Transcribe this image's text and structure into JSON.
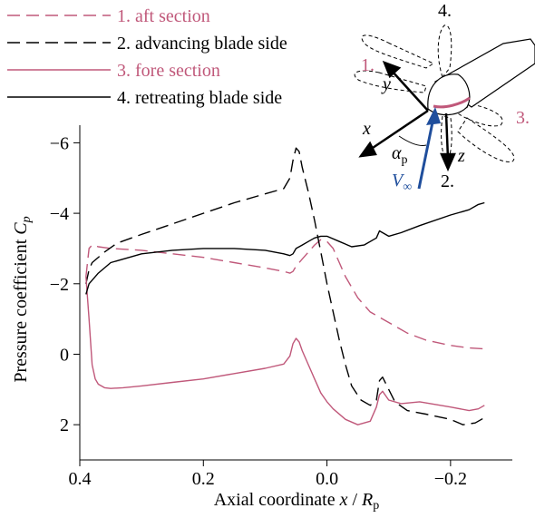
{
  "chart_data": {
    "type": "line",
    "xlabel": "Axial coordinate x / R_p",
    "ylabel": "Pressure coefficient C_p",
    "xlim": [
      0.4,
      -0.3
    ],
    "ylim": [
      3,
      -6.5
    ],
    "x_axis_reversed": true,
    "y_axis_reversed": true,
    "xticks": [
      "0.4",
      "0.2",
      "0.0",
      "−0.2"
    ],
    "xtick_values": [
      0.4,
      0.2,
      0.0,
      -0.2
    ],
    "yticks": [
      "−6",
      "−4",
      "−2",
      "0",
      "2"
    ],
    "ytick_values": [
      -6,
      -4,
      -2,
      0,
      2
    ],
    "grid": false,
    "legend_position": "top-left",
    "series": [
      {
        "name": "1. aft section",
        "color": "#c0587a",
        "dash": "dashed",
        "points": [
          [
            0.39,
            -2.2
          ],
          [
            0.385,
            -3.0
          ],
          [
            0.38,
            -3.1
          ],
          [
            0.37,
            -3.05
          ],
          [
            0.35,
            -3.0
          ],
          [
            0.3,
            -2.95
          ],
          [
            0.25,
            -2.85
          ],
          [
            0.2,
            -2.75
          ],
          [
            0.15,
            -2.6
          ],
          [
            0.1,
            -2.45
          ],
          [
            0.07,
            -2.35
          ],
          [
            0.06,
            -2.3
          ],
          [
            0.055,
            -2.35
          ],
          [
            0.05,
            -2.5
          ],
          [
            0.04,
            -2.7
          ],
          [
            0.03,
            -2.9
          ],
          [
            0.02,
            -3.1
          ],
          [
            0.01,
            -3.25
          ],
          [
            0.0,
            -3.2
          ],
          [
            -0.01,
            -3.0
          ],
          [
            -0.02,
            -2.6
          ],
          [
            -0.03,
            -2.2
          ],
          [
            -0.05,
            -1.6
          ],
          [
            -0.07,
            -1.2
          ],
          [
            -0.1,
            -0.9
          ],
          [
            -0.13,
            -0.6
          ],
          [
            -0.16,
            -0.4
          ],
          [
            -0.2,
            -0.25
          ],
          [
            -0.23,
            -0.18
          ],
          [
            -0.255,
            -0.15
          ]
        ]
      },
      {
        "name": "2. advancing blade side",
        "color": "#000000",
        "dash": "dashed",
        "points": [
          [
            0.39,
            -2.0
          ],
          [
            0.385,
            -2.4
          ],
          [
            0.38,
            -2.6
          ],
          [
            0.36,
            -2.9
          ],
          [
            0.34,
            -3.15
          ],
          [
            0.3,
            -3.4
          ],
          [
            0.25,
            -3.7
          ],
          [
            0.2,
            -4.0
          ],
          [
            0.15,
            -4.3
          ],
          [
            0.1,
            -4.55
          ],
          [
            0.07,
            -4.7
          ],
          [
            0.06,
            -5.0
          ],
          [
            0.055,
            -5.5
          ],
          [
            0.05,
            -5.85
          ],
          [
            0.045,
            -5.75
          ],
          [
            0.04,
            -5.3
          ],
          [
            0.03,
            -4.6
          ],
          [
            0.02,
            -3.8
          ],
          [
            0.01,
            -2.9
          ],
          [
            0.0,
            -2.0
          ],
          [
            -0.01,
            -1.2
          ],
          [
            -0.02,
            -0.4
          ],
          [
            -0.03,
            0.3
          ],
          [
            -0.04,
            0.9
          ],
          [
            -0.055,
            1.3
          ],
          [
            -0.07,
            1.45
          ],
          [
            -0.08,
            1.3
          ],
          [
            -0.085,
            0.75
          ],
          [
            -0.09,
            0.65
          ],
          [
            -0.1,
            1.0
          ],
          [
            -0.11,
            1.35
          ],
          [
            -0.13,
            1.6
          ],
          [
            -0.16,
            1.7
          ],
          [
            -0.2,
            1.85
          ],
          [
            -0.22,
            2.0
          ],
          [
            -0.24,
            1.95
          ],
          [
            -0.255,
            1.8
          ]
        ]
      },
      {
        "name": "3. fore section",
        "color": "#c0587a",
        "dash": "solid",
        "points": [
          [
            0.39,
            -2.2
          ],
          [
            0.385,
            -1.0
          ],
          [
            0.38,
            0.3
          ],
          [
            0.375,
            0.7
          ],
          [
            0.37,
            0.85
          ],
          [
            0.36,
            0.95
          ],
          [
            0.35,
            0.97
          ],
          [
            0.33,
            0.95
          ],
          [
            0.3,
            0.9
          ],
          [
            0.25,
            0.8
          ],
          [
            0.2,
            0.7
          ],
          [
            0.15,
            0.55
          ],
          [
            0.1,
            0.4
          ],
          [
            0.07,
            0.28
          ],
          [
            0.06,
            0.05
          ],
          [
            0.055,
            -0.3
          ],
          [
            0.05,
            -0.45
          ],
          [
            0.045,
            -0.35
          ],
          [
            0.04,
            -0.1
          ],
          [
            0.03,
            0.3
          ],
          [
            0.02,
            0.7
          ],
          [
            0.01,
            1.1
          ],
          [
            0.0,
            1.35
          ],
          [
            -0.01,
            1.55
          ],
          [
            -0.03,
            1.85
          ],
          [
            -0.05,
            2.0
          ],
          [
            -0.07,
            1.9
          ],
          [
            -0.08,
            1.5
          ],
          [
            -0.085,
            1.15
          ],
          [
            -0.09,
            1.05
          ],
          [
            -0.1,
            1.3
          ],
          [
            -0.12,
            1.4
          ],
          [
            -0.15,
            1.35
          ],
          [
            -0.2,
            1.5
          ],
          [
            -0.23,
            1.6
          ],
          [
            -0.245,
            1.55
          ],
          [
            -0.255,
            1.45
          ]
        ]
      },
      {
        "name": "4. retreating blade side",
        "color": "#000000",
        "dash": "solid",
        "points": [
          [
            0.39,
            -1.7
          ],
          [
            0.385,
            -2.0
          ],
          [
            0.37,
            -2.3
          ],
          [
            0.35,
            -2.6
          ],
          [
            0.3,
            -2.85
          ],
          [
            0.25,
            -2.95
          ],
          [
            0.2,
            -3.0
          ],
          [
            0.15,
            -3.0
          ],
          [
            0.1,
            -2.95
          ],
          [
            0.07,
            -2.85
          ],
          [
            0.06,
            -2.8
          ],
          [
            0.055,
            -2.85
          ],
          [
            0.05,
            -3.0
          ],
          [
            0.04,
            -3.1
          ],
          [
            0.03,
            -3.2
          ],
          [
            0.02,
            -3.3
          ],
          [
            0.01,
            -3.35
          ],
          [
            0.0,
            -3.35
          ],
          [
            -0.02,
            -3.2
          ],
          [
            -0.04,
            -3.05
          ],
          [
            -0.06,
            -3.1
          ],
          [
            -0.08,
            -3.3
          ],
          [
            -0.085,
            -3.5
          ],
          [
            -0.09,
            -3.45
          ],
          [
            -0.1,
            -3.35
          ],
          [
            -0.12,
            -3.45
          ],
          [
            -0.15,
            -3.65
          ],
          [
            -0.2,
            -3.95
          ],
          [
            -0.23,
            -4.1
          ],
          [
            -0.245,
            -4.25
          ],
          [
            -0.255,
            -4.3
          ]
        ]
      }
    ]
  },
  "inset": {
    "labels": {
      "station_1": "1.",
      "station_2": "2.",
      "station_3": "3.",
      "station_4": "4.",
      "axis_x": "x",
      "axis_y": "y",
      "axis_z": "z",
      "alpha_symbol": "α",
      "alpha_subscript": "p",
      "velocity_symbol": "V",
      "velocity_subscript": "∞"
    },
    "colors": {
      "accent_pink": "#c0587a",
      "velocity_blue": "#1f4e9c"
    }
  }
}
